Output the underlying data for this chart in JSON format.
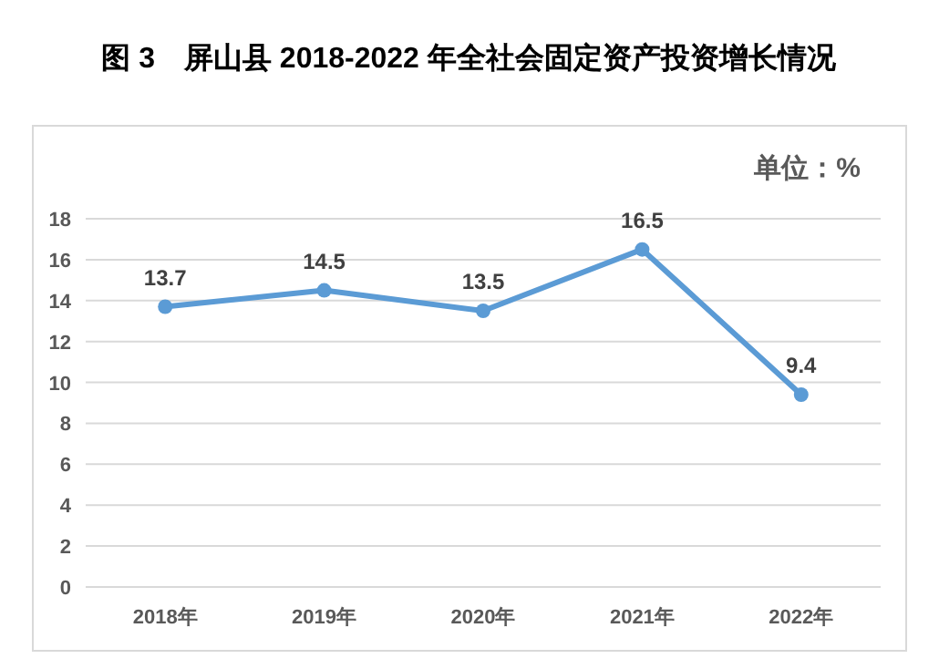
{
  "chart_data": {
    "type": "line",
    "title": "图 3　屏山县 2018-2022 年全社会固定资产投资增长情况",
    "annotations": [
      "单位：%"
    ],
    "categories": [
      "2018年",
      "2019年",
      "2020年",
      "2021年",
      "2022年"
    ],
    "series": [
      {
        "color": "#5b9bd5",
        "values": [
          13.7,
          14.5,
          13.5,
          16.5,
          9.4
        ]
      }
    ],
    "ylim": [
      0,
      18
    ],
    "yticks": [
      0,
      2,
      4,
      6,
      8,
      10,
      12,
      14,
      16,
      18
    ],
    "grid": "y",
    "marker": "circle",
    "line_style": "solid",
    "data_labels": true
  }
}
